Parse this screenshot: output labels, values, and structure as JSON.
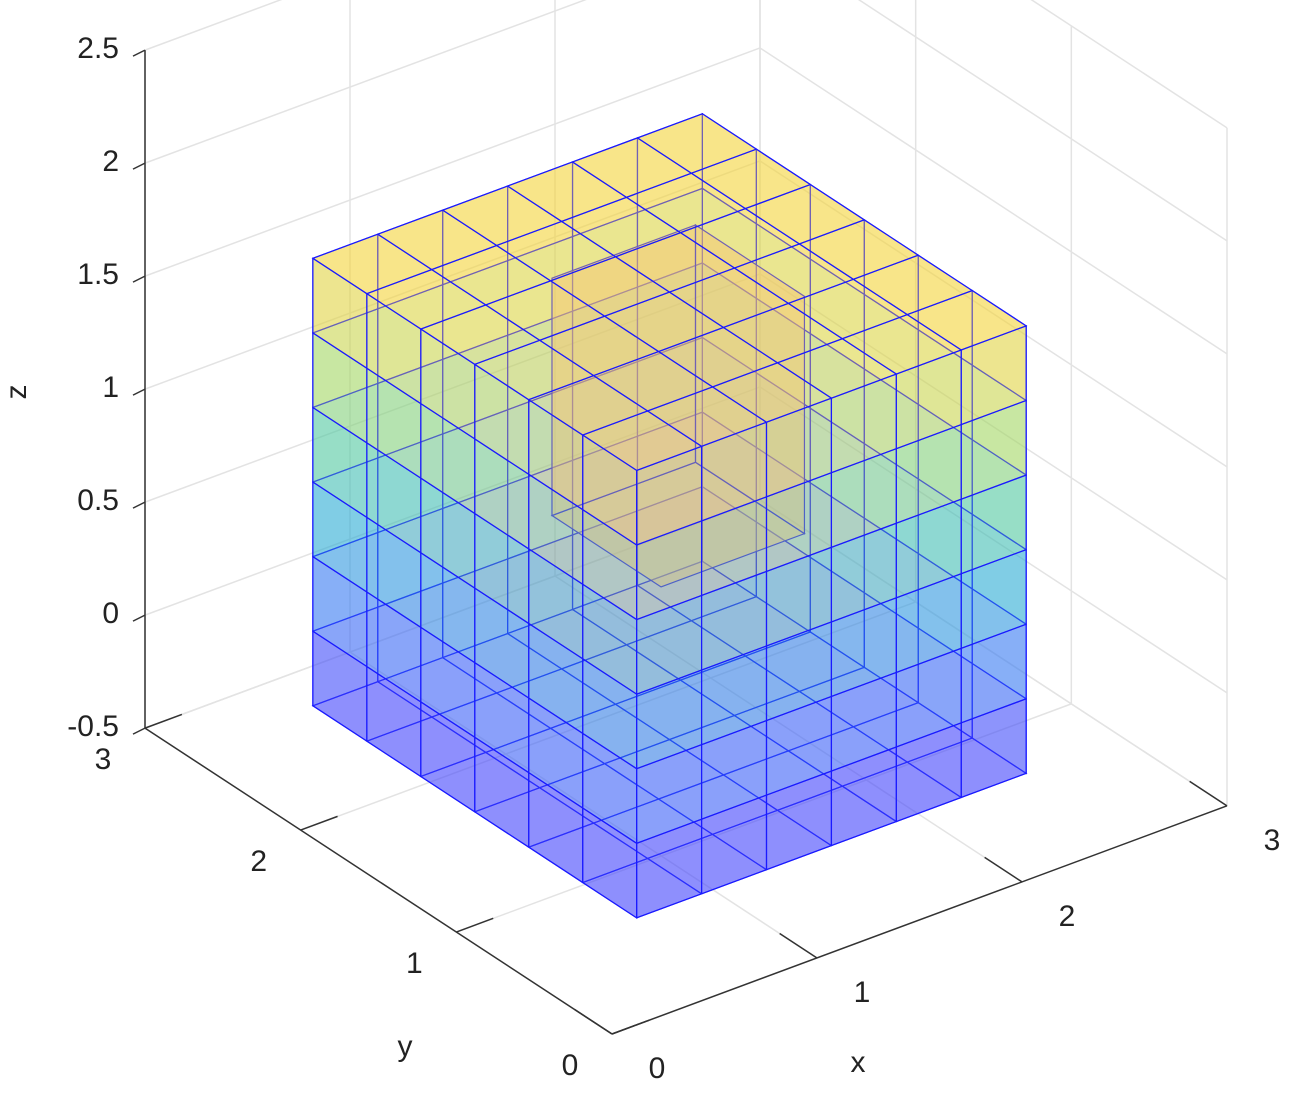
{
  "chart_data": {
    "type": "mesh3d",
    "xlabel": "x",
    "ylabel": "y",
    "zlabel": "z",
    "xlim": [
      0,
      3
    ],
    "ylim": [
      0,
      3
    ],
    "zlim": [
      -0.5,
      2.5
    ],
    "xticks": [
      0,
      1,
      2,
      3
    ],
    "yticks": [
      0,
      1,
      2,
      3
    ],
    "zticks": [
      -0.5,
      0,
      0.5,
      1,
      1.5,
      2,
      2.5
    ],
    "grid": true
  }
}
